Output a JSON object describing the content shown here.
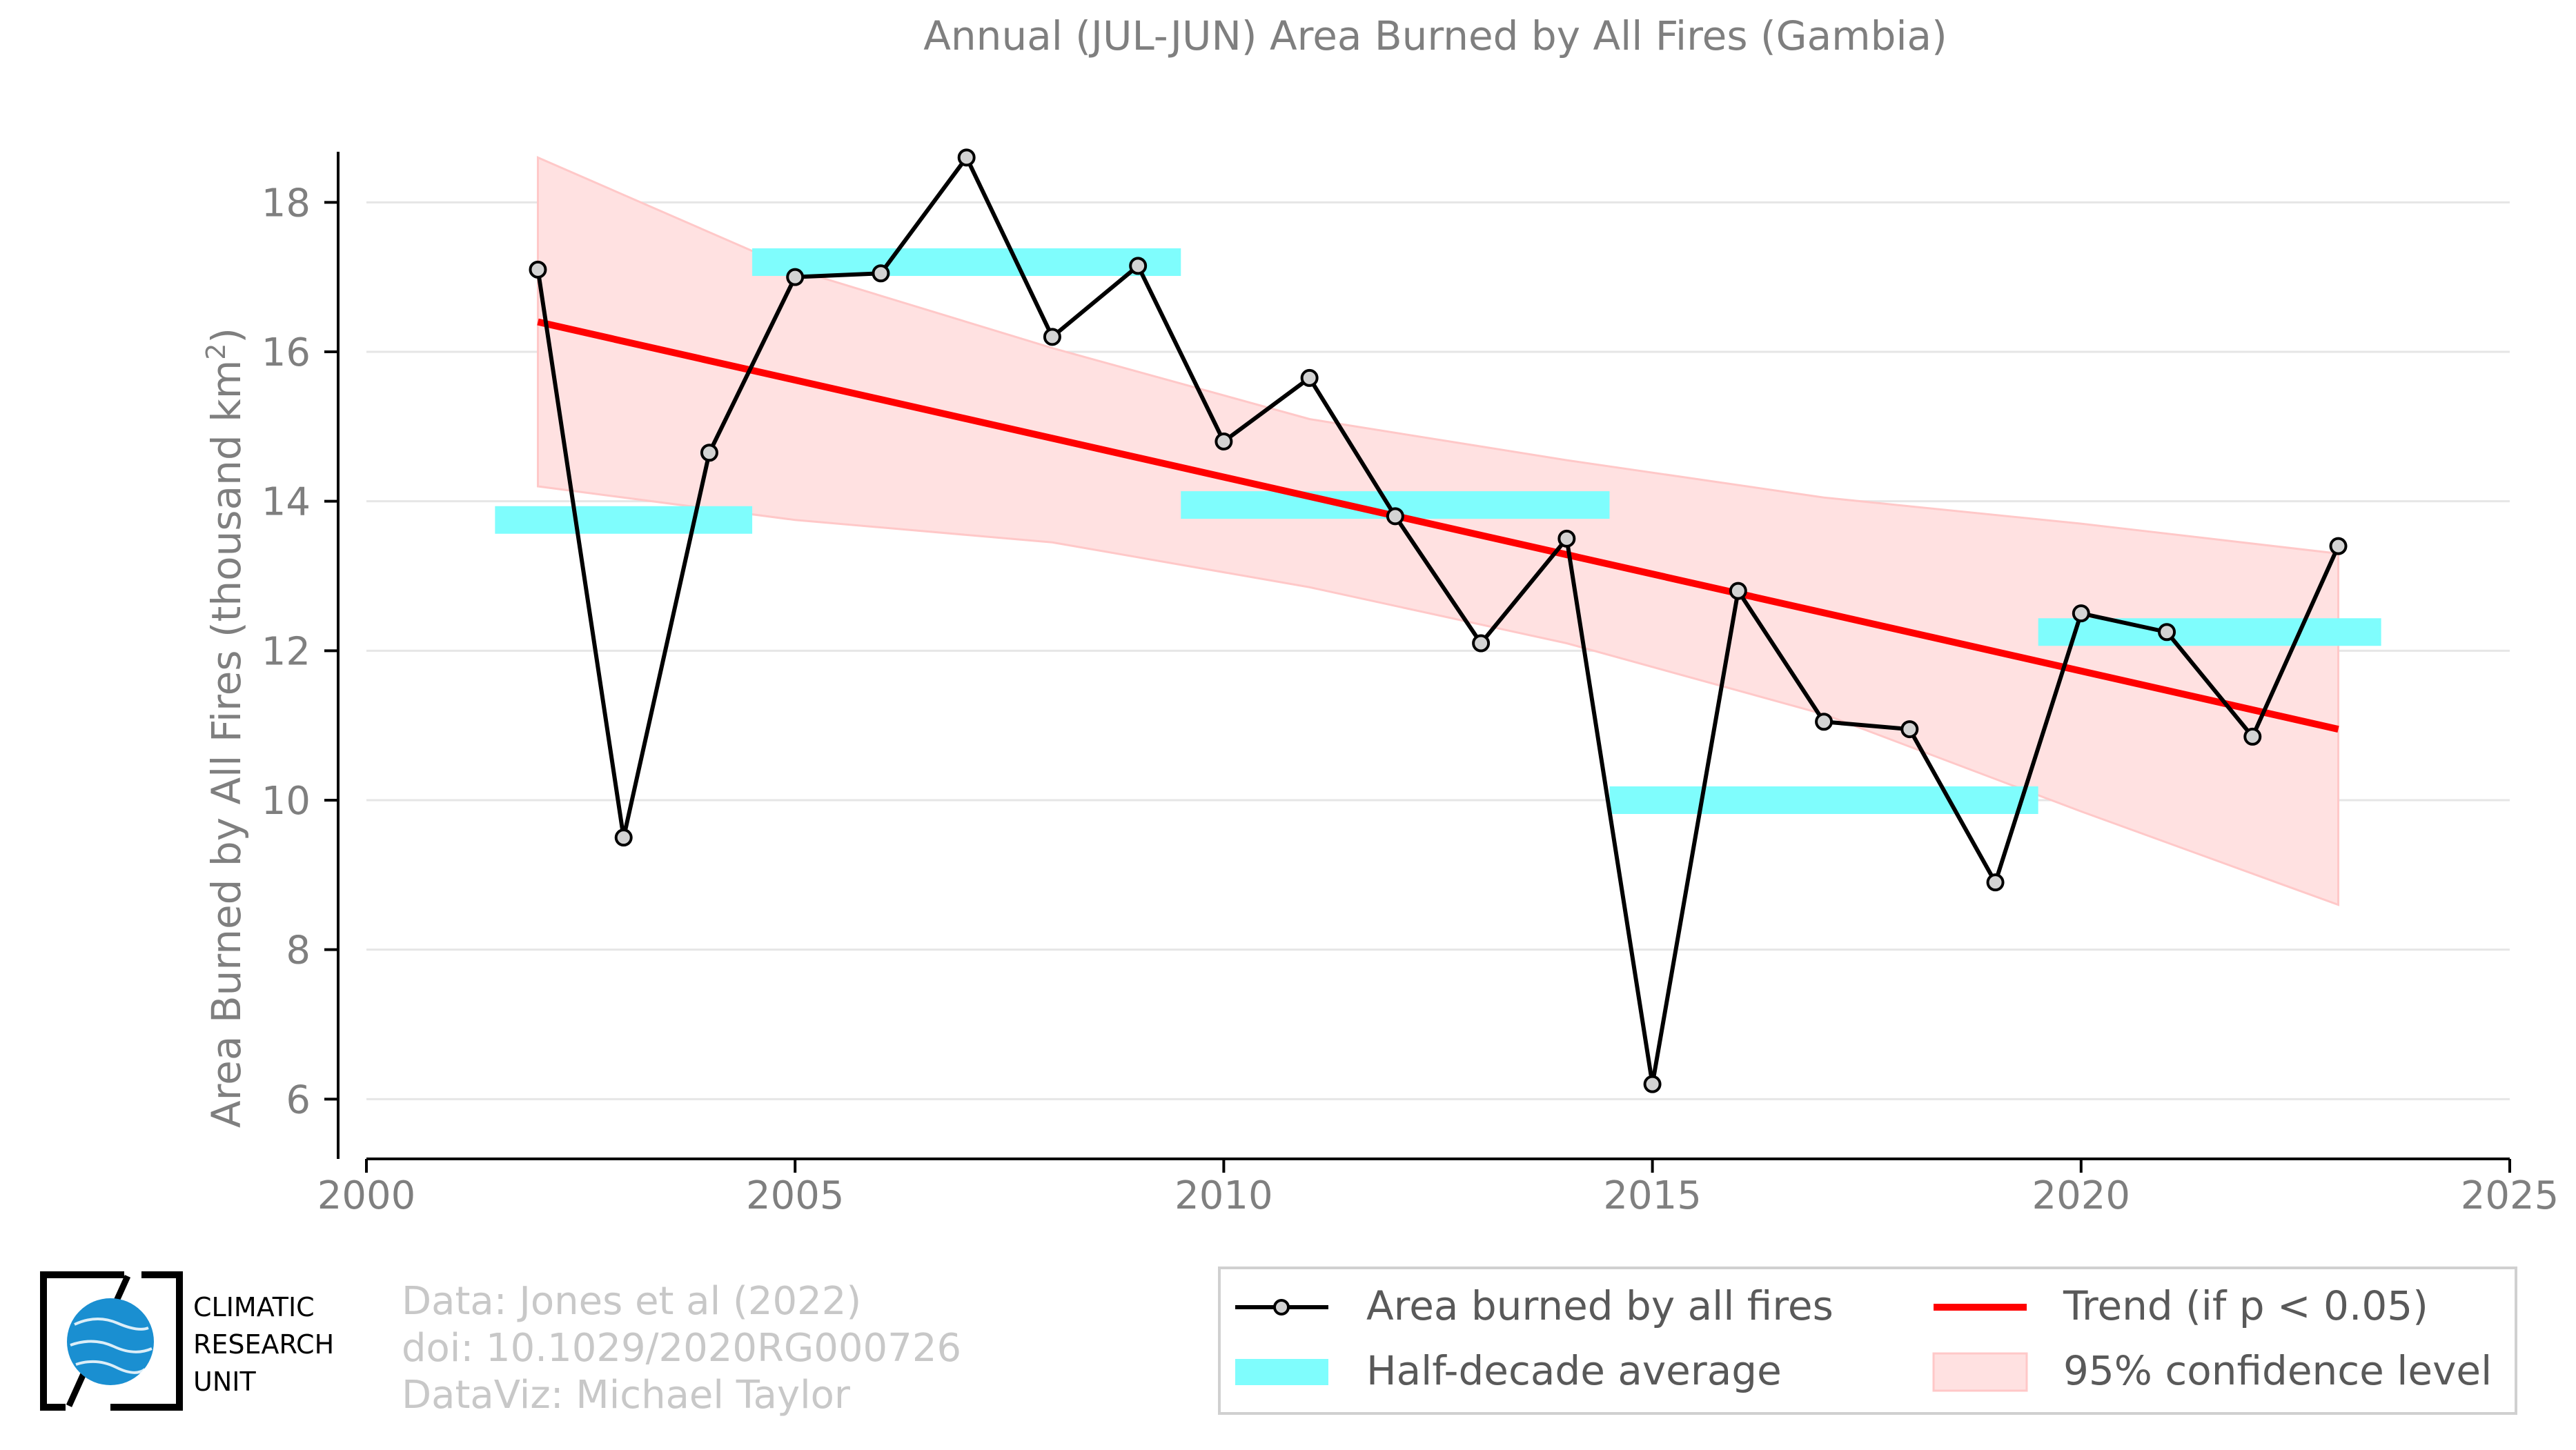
{
  "chart_data": {
    "type": "line",
    "title": "Annual (JUL-JUN) Area Burned by All Fires (Gambia)",
    "ylabel_main": "Area Burned by All Fires (thousand km",
    "ylabel_sup": "2",
    "ylabel_close": ")",
    "xlim": [
      2000,
      2025
    ],
    "ylim": [
      5.2,
      19.6
    ],
    "xticks": [
      2000,
      2005,
      2010,
      2015,
      2020,
      2025
    ],
    "yticks": [
      6,
      8,
      10,
      12,
      14,
      16,
      18
    ],
    "grid": true,
    "legend_position": "bottom-right",
    "series": [
      {
        "name": "Area burned by all fires",
        "color": "#000000",
        "x": [
          2002,
          2003,
          2004,
          2005,
          2006,
          2007,
          2008,
          2009,
          2010,
          2011,
          2012,
          2013,
          2014,
          2015,
          2016,
          2017,
          2018,
          2019,
          2020,
          2021,
          2022,
          2023
        ],
        "y": [
          17.1,
          9.5,
          14.65,
          17.0,
          17.05,
          18.6,
          16.2,
          17.15,
          14.8,
          15.65,
          13.8,
          12.1,
          13.5,
          6.2,
          12.8,
          11.05,
          10.95,
          8.9,
          12.5,
          12.25,
          10.85,
          13.4
        ]
      }
    ],
    "half_decade_average": {
      "name": "Half-decade average",
      "color": "#7ffdfd",
      "segments": [
        {
          "x_start": 2001.5,
          "x_end": 2004.5,
          "y": 13.75
        },
        {
          "x_start": 2004.5,
          "x_end": 2009.5,
          "y": 17.2
        },
        {
          "x_start": 2009.5,
          "x_end": 2014.5,
          "y": 13.95
        },
        {
          "x_start": 2014.5,
          "x_end": 2019.5,
          "y": 10.0
        },
        {
          "x_start": 2019.5,
          "x_end": 2023.5,
          "y": 12.25
        }
      ]
    },
    "trend": {
      "name": "Trend (if p < 0.05)",
      "color": "#ff0000",
      "x": [
        2002,
        2023
      ],
      "y": [
        16.4,
        10.95
      ]
    },
    "confidence_band": {
      "name": "95% confidence level",
      "color": "#ffc8c8",
      "x": [
        2002,
        2005,
        2008,
        2011,
        2014,
        2017,
        2020,
        2023
      ],
      "upper": [
        18.6,
        17.1,
        16.05,
        15.1,
        14.55,
        14.05,
        13.7,
        13.3
      ],
      "lower": [
        14.2,
        13.75,
        13.45,
        12.85,
        12.1,
        11.15,
        9.85,
        8.6
      ]
    }
  },
  "legend": {
    "items": [
      {
        "label": "Area burned by all fires"
      },
      {
        "label": "Trend (if p < 0.05)"
      },
      {
        "label": "Half-decade average"
      },
      {
        "label": "95% confidence level"
      }
    ]
  },
  "credits": {
    "line1": "Data: Jones et al (2022)",
    "line2": "doi: 10.1029/2020RG000726",
    "line3": "DataViz: Michael Taylor"
  },
  "logo": {
    "line1": "CLIMATIC",
    "line2": "RESEARCH",
    "line3": "UNIT",
    "accent_color": "#1a8fd1"
  }
}
